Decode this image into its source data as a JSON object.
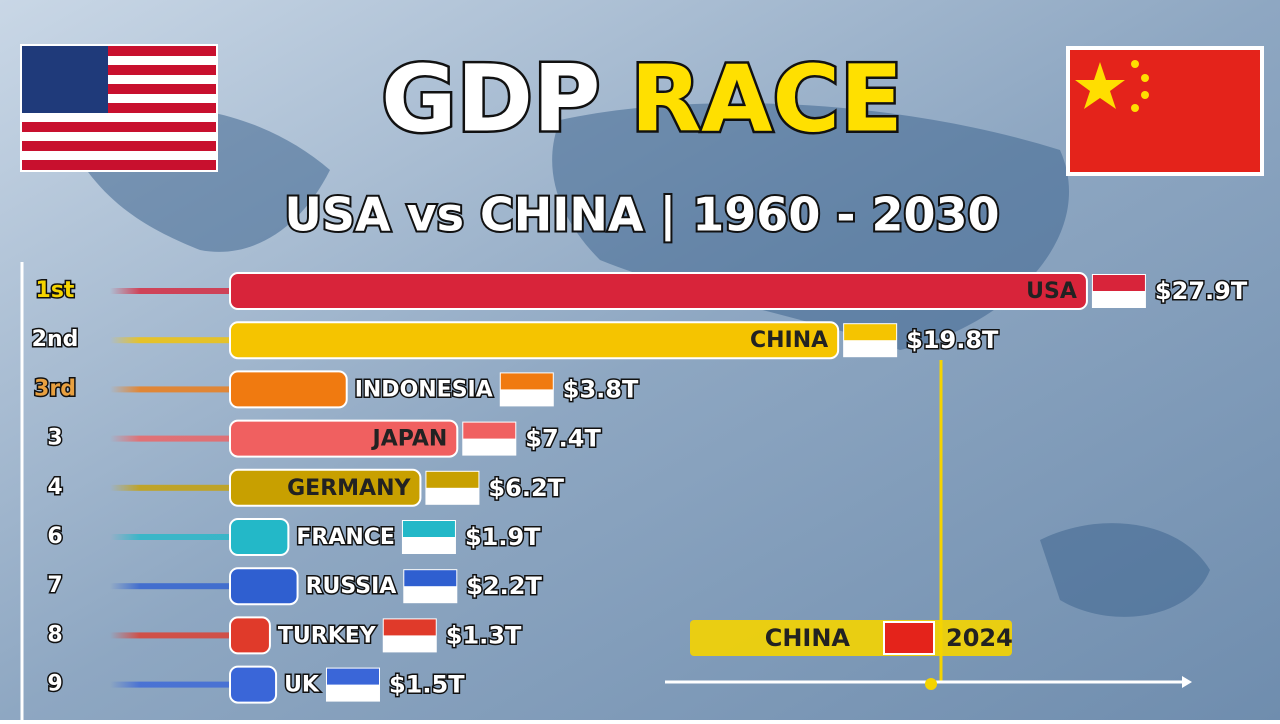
{
  "chart_data": {
    "type": "bar",
    "title": "GDP",
    "title_highlight": "RACE",
    "subtitle": "USA vs CHINA | 1960 - 2030",
    "ranks": [
      "1st",
      "2nd",
      "3rd",
      "3",
      "4",
      "6",
      "7",
      "8",
      "9"
    ],
    "categories": [
      "USA",
      "CHINA",
      "INDONESIA",
      "JAPAN",
      "GERMANY",
      "FRANCE",
      "RUSSIA",
      "TURKEY",
      "UK"
    ],
    "values": [
      27.9,
      19.8,
      3.8,
      7.4,
      6.2,
      1.9,
      2.2,
      1.3,
      1.5
    ],
    "value_labels": [
      "$27.9T",
      "$19.8T",
      "$3.8T",
      "$7.4T",
      "$6.2T",
      "$1.9T",
      "$2.2T",
      "$1.3T",
      "$1.5T"
    ],
    "colors": [
      "#d8243a",
      "#f5c400",
      "#f07a10",
      "#f06060",
      "#c8a000",
      "#23b8c8",
      "#2f5fd0",
      "#e03a2a",
      "#3a66d8"
    ],
    "xlim": [
      0,
      28
    ],
    "timeline": {
      "leader": "CHINA",
      "year": 2024
    }
  }
}
